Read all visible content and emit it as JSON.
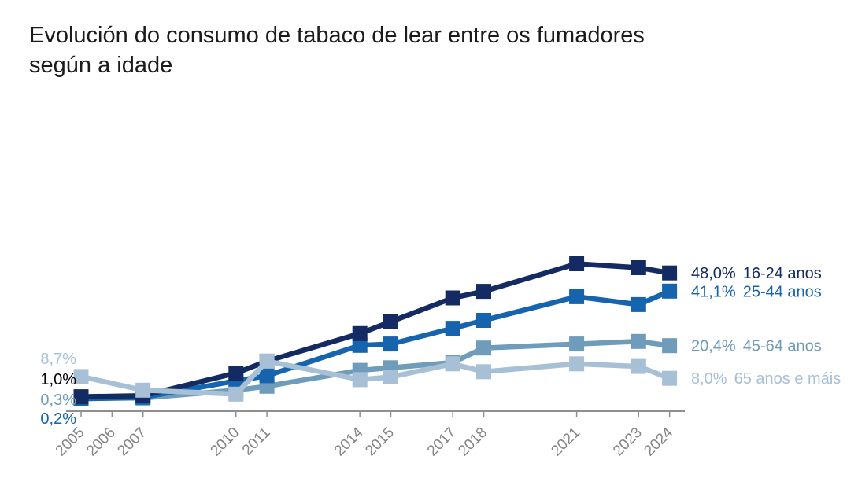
{
  "title": "Evolución do consumo de tabaco de lear entre os fumadores según a idade",
  "title_lines": [
    "Evolución do consumo de tabaco de lear entre os fumadores",
    "según a idade"
  ],
  "chart_data": {
    "type": "line",
    "title": "Evolución do consumo de tabaco de lear entre os fumadores según a idade",
    "xlabel": "",
    "ylabel": "",
    "ylim": [
      0,
      55
    ],
    "grid": false,
    "legend_position": "right-of-line-ends",
    "axis_color": "#8f8f8f",
    "tick_label_color": "#848484",
    "x": [
      2005,
      2006,
      2007,
      2010,
      2011,
      2014,
      2015,
      2017,
      2018,
      2021,
      2023,
      2024
    ],
    "series": [
      {
        "name": "16-24 anos",
        "color": "#132a62",
        "start_label": "1,0%",
        "end_label": "48,0%",
        "values": [
          1.0,
          null,
          1.4,
          10.0,
          14.5,
          25.0,
          29.5,
          38.5,
          41.0,
          51.5,
          50.0,
          48.0
        ]
      },
      {
        "name": "25-44 anos",
        "color": "#1564ad",
        "start_label": "0,2%",
        "end_label": "41,1%",
        "values": [
          0.2,
          null,
          0.8,
          7.0,
          9.0,
          20.5,
          21.0,
          27.0,
          30.0,
          39.0,
          36.0,
          41.1
        ]
      },
      {
        "name": "45-64 anos",
        "color": "#6e9cba",
        "start_label": "0,3%",
        "end_label": "20,4%",
        "values": [
          0.3,
          null,
          0.5,
          3.5,
          5.0,
          11.0,
          12.0,
          14.0,
          19.5,
          21.0,
          22.0,
          20.4
        ]
      },
      {
        "name": "65 anos e máis",
        "color": "#a8c0d6",
        "start_label": "8,7%",
        "end_label": "8,0%",
        "values": [
          8.7,
          null,
          3.5,
          2.0,
          14.5,
          7.5,
          8.5,
          13.5,
          10.5,
          13.5,
          12.5,
          8.0
        ]
      }
    ],
    "left_labels": [
      {
        "text": "8,7%",
        "color": "#a8c0d6",
        "series": "65 anos e máis"
      },
      {
        "text": "1,0%",
        "color": "#000000",
        "series": "16-24 anos"
      },
      {
        "text": "0,3%",
        "color": "#6e9cba",
        "series": "45-64 anos"
      },
      {
        "text": "0,2%",
        "color": "#1564ad",
        "series": "25-44 anos"
      }
    ],
    "draw_order": [
      2,
      1,
      0,
      3
    ]
  }
}
